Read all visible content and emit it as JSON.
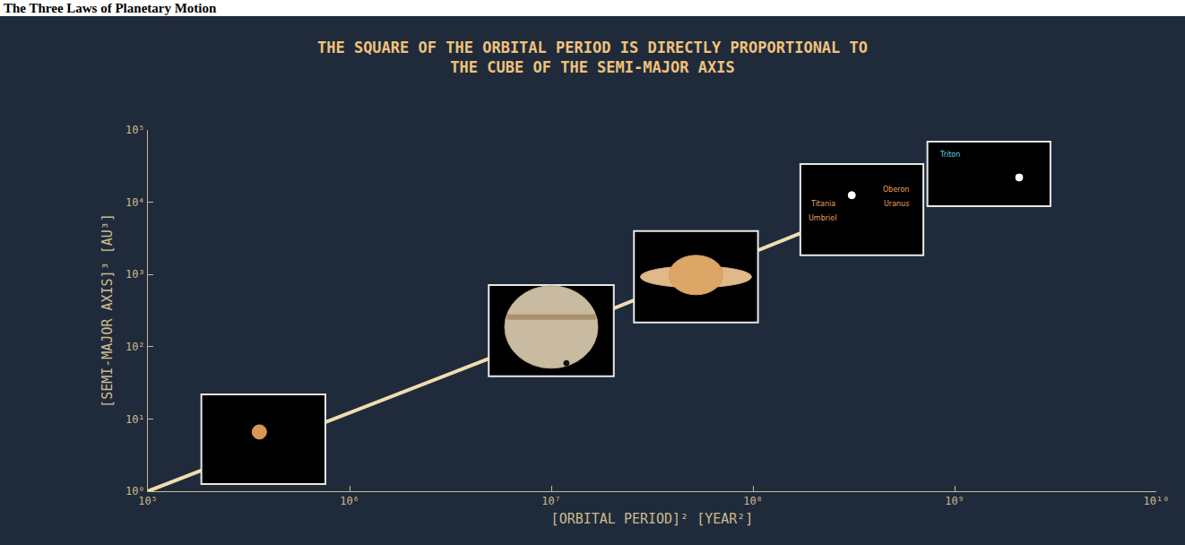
{
  "header": {
    "title": "The Three Laws of Planetary Motion"
  },
  "chart_data": {
    "type": "line",
    "title": "THE SQUARE OF THE ORBITAL PERIOD IS DIRECTLY PROPORTIONAL TO THE CUBE OF THE SEMI-MAJOR AXIS",
    "x_label": "[ORBITAL PERIOD]² [YEAR²]",
    "y_label": "[SEMI-MAJOR AXIS]³ [AU³]",
    "x": [
      100000,
      5000000,
      700000000
    ],
    "values": [
      1,
      70,
      18000
    ],
    "color": "#f2dcae",
    "xlim": [
      100000,
      10000000000
    ],
    "ylim": [
      1,
      100000
    ],
    "xticks": [
      {
        "value": 100000,
        "label": "10⁵"
      },
      {
        "value": 1000000,
        "label": "10⁶"
      },
      {
        "value": 10000000,
        "label": "10⁷"
      },
      {
        "value": 100000000,
        "label": "10⁸"
      },
      {
        "value": 1000000000,
        "label": "10⁹"
      },
      {
        "value": 10000000000,
        "label": "10¹⁰"
      }
    ],
    "yticks": [
      {
        "value": 1,
        "label": "10⁰"
      },
      {
        "value": 10,
        "label": "10¹"
      },
      {
        "value": 100,
        "label": "10²"
      },
      {
        "value": 1000,
        "label": "10³"
      },
      {
        "value": 10000,
        "label": "10⁴"
      },
      {
        "value": 100000,
        "label": "10⁵"
      }
    ],
    "log": true,
    "grid": false,
    "annotations": [
      "Oberon",
      "Titania",
      "Uranus",
      "Umbriel",
      "Triton"
    ]
  }
}
